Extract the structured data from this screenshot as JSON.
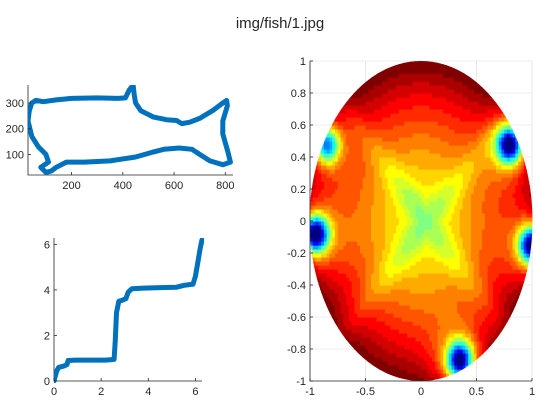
{
  "figure": {
    "title": "img/fish/1.jpg"
  },
  "colors": {
    "curve": "#0072BD",
    "axis": "#262626",
    "grid": "#d9d9d9"
  },
  "chart_data": [
    {
      "type": "line",
      "name": "fish-outline",
      "xlim": [
        30,
        830
      ],
      "ylim": [
        20,
        370
      ],
      "xticks": [
        200,
        400,
        600,
        800
      ],
      "yticks": [
        100,
        200,
        300
      ],
      "grid": false,
      "points": [
        [
          90,
          305
        ],
        [
          140,
          312
        ],
        [
          200,
          318
        ],
        [
          300,
          320
        ],
        [
          380,
          318
        ],
        [
          410,
          320
        ],
        [
          425,
          350
        ],
        [
          440,
          370
        ],
        [
          445,
          330
        ],
        [
          450,
          300
        ],
        [
          470,
          270
        ],
        [
          520,
          245
        ],
        [
          570,
          235
        ],
        [
          610,
          232
        ],
        [
          630,
          220
        ],
        [
          660,
          225
        ],
        [
          700,
          240
        ],
        [
          750,
          270
        ],
        [
          790,
          300
        ],
        [
          805,
          310
        ],
        [
          808,
          290
        ],
        [
          790,
          230
        ],
        [
          790,
          180
        ],
        [
          810,
          110
        ],
        [
          820,
          70
        ],
        [
          790,
          60
        ],
        [
          740,
          75
        ],
        [
          700,
          100
        ],
        [
          670,
          120
        ],
        [
          620,
          125
        ],
        [
          560,
          120
        ],
        [
          520,
          110
        ],
        [
          450,
          90
        ],
        [
          350,
          75
        ],
        [
          250,
          70
        ],
        [
          180,
          70
        ],
        [
          140,
          50
        ],
        [
          120,
          35
        ],
        [
          100,
          30
        ],
        [
          80,
          50
        ],
        [
          110,
          70
        ],
        [
          100,
          100
        ],
        [
          70,
          130
        ],
        [
          45,
          170
        ],
        [
          30,
          230
        ],
        [
          35,
          270
        ],
        [
          45,
          300
        ],
        [
          60,
          310
        ],
        [
          90,
          305
        ]
      ]
    },
    {
      "type": "line",
      "name": "stepped-curve",
      "xlim": [
        0,
        6.28
      ],
      "ylim": [
        0,
        6.28
      ],
      "xticks": [
        0,
        2,
        4,
        6
      ],
      "yticks": [
        0,
        2,
        4,
        6
      ],
      "grid": false,
      "points": [
        [
          0,
          0
        ],
        [
          0.05,
          0.2
        ],
        [
          0.12,
          0.45
        ],
        [
          0.2,
          0.6
        ],
        [
          0.4,
          0.65
        ],
        [
          0.55,
          0.72
        ],
        [
          0.6,
          0.9
        ],
        [
          0.9,
          0.92
        ],
        [
          1.5,
          0.92
        ],
        [
          2.2,
          0.92
        ],
        [
          2.55,
          0.95
        ],
        [
          2.6,
          1.8
        ],
        [
          2.65,
          3.0
        ],
        [
          2.75,
          3.5
        ],
        [
          2.9,
          3.55
        ],
        [
          3.05,
          3.62
        ],
        [
          3.15,
          3.9
        ],
        [
          3.3,
          4.05
        ],
        [
          3.8,
          4.08
        ],
        [
          4.5,
          4.1
        ],
        [
          5.2,
          4.12
        ],
        [
          5.5,
          4.2
        ],
        [
          5.9,
          4.25
        ],
        [
          6.0,
          4.6
        ],
        [
          6.1,
          5.2
        ],
        [
          6.2,
          5.8
        ],
        [
          6.28,
          6.2
        ]
      ]
    },
    {
      "type": "heatmap",
      "name": "disk-field",
      "xlim": [
        -1,
        1
      ],
      "ylim": [
        -1,
        1
      ],
      "xticks": [
        -1,
        -0.5,
        0,
        0.5,
        1
      ],
      "xtick_labels": [
        "-1",
        "-0.5",
        "0",
        "0.5",
        "1"
      ],
      "yticks": [
        1,
        0.8,
        0.6,
        0.4,
        0.2,
        0,
        -0.2,
        -0.4,
        -0.6,
        -0.8,
        -1
      ],
      "ytick_labels": [
        "1",
        "0.8",
        "0.6",
        "0.4",
        "0.2",
        "0",
        "-0.2",
        "-0.4",
        "-0.6",
        "-0.8",
        "-1"
      ],
      "grid": true,
      "colormap": "jet",
      "domain": "unit-disk",
      "low_spots": [
        {
          "x": -0.95,
          "y": -0.08,
          "depth": 1.0
        },
        {
          "x": 1.0,
          "y": -0.15,
          "depth": 1.0
        },
        {
          "x": 0.8,
          "y": 0.48,
          "depth": 0.95
        },
        {
          "x": 0.35,
          "y": -0.87,
          "depth": 0.95
        },
        {
          "x": -0.85,
          "y": 0.48,
          "depth": 0.7
        }
      ]
    }
  ]
}
